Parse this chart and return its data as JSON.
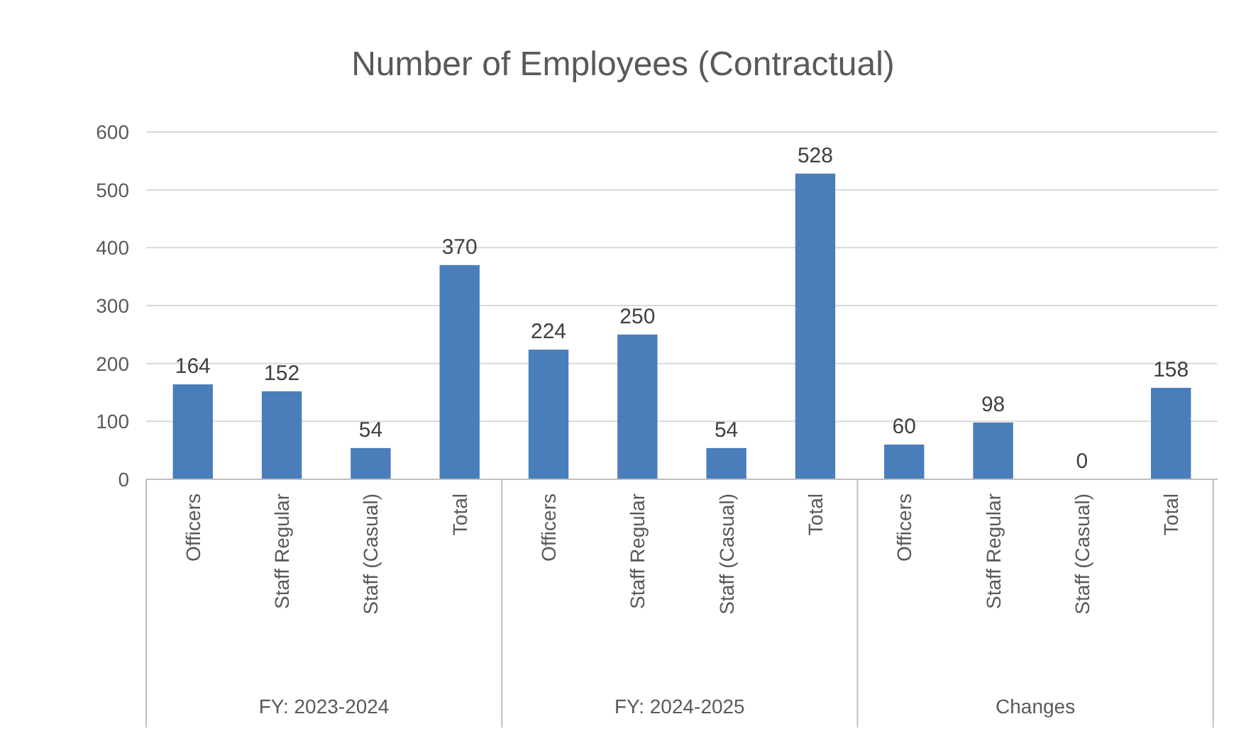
{
  "chart_data": {
    "type": "bar",
    "title": "Number of Employees (Contractual)",
    "categories": [
      "Officers",
      "Staff Regular",
      "Staff (Casual)",
      "Total",
      "Officers",
      "Staff Regular",
      "Staff (Casual)",
      "Total",
      "Officers",
      "Staff Regular",
      "Staff (Casual)",
      "Total"
    ],
    "values": [
      164,
      152,
      54,
      370,
      224,
      250,
      54,
      528,
      60,
      98,
      0,
      158
    ],
    "color": "#4a7ebb",
    "ylim": [
      0,
      600
    ],
    "yticks": [
      0,
      100,
      200,
      300,
      400,
      500,
      600
    ],
    "grid": "y",
    "data_labels": true,
    "annotations": [
      "FY: 2023-2024",
      "FY: 2024-2025",
      "Changes"
    ]
  }
}
